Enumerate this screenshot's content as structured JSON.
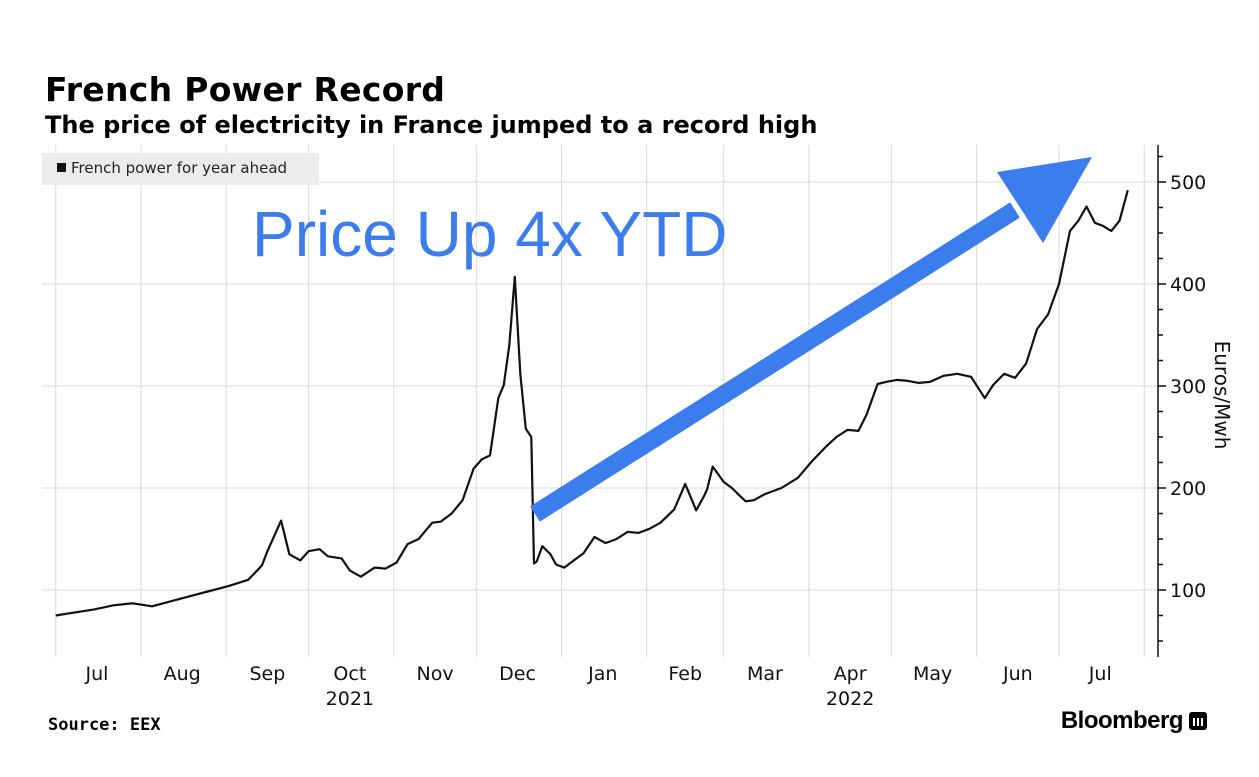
{
  "header": {
    "title": "French Power Record",
    "subtitle": "The price of electricity in France jumped to a record high"
  },
  "footer": {
    "source": "Source: EEX",
    "brand": "Bloomberg"
  },
  "annotation": {
    "text": "Price Up 4x YTD",
    "color": "#3b7ded"
  },
  "colors": {
    "line": "#111111",
    "grid": "#d9d9d9",
    "legend_bg": "#ececec",
    "arrow": "#3b7ded"
  },
  "chart_data": {
    "type": "line",
    "title": "French Power Record",
    "subtitle": "The price of electricity in France jumped to a record high",
    "ylabel": "Euros/Mwh",
    "ylim": [
      35,
      535
    ],
    "yticks": [
      100,
      200,
      300,
      400,
      500
    ],
    "y_axis_side": "right",
    "grid": true,
    "legend": {
      "position": "top-left",
      "entries": [
        "French power for year ahead"
      ]
    },
    "x_month_labels": [
      "Jul",
      "Aug",
      "Sep",
      "Oct",
      "Nov",
      "Dec",
      "Jan",
      "Feb",
      "Mar",
      "Apr",
      "May",
      "Jun",
      "Jul"
    ],
    "x_year_labels": [
      "2021",
      "2022"
    ],
    "series": [
      {
        "name": "French power for year ahead",
        "x": [
          "2021-07-01",
          "2021-07-08",
          "2021-07-15",
          "2021-07-22",
          "2021-07-29",
          "2021-08-05",
          "2021-08-12",
          "2021-08-19",
          "2021-08-26",
          "2021-09-02",
          "2021-09-09",
          "2021-09-14",
          "2021-09-16",
          "2021-09-21",
          "2021-09-24",
          "2021-09-28",
          "2021-10-01",
          "2021-10-05",
          "2021-10-08",
          "2021-10-13",
          "2021-10-16",
          "2021-10-20",
          "2021-10-25",
          "2021-10-29",
          "2021-11-02",
          "2021-11-06",
          "2021-11-10",
          "2021-11-15",
          "2021-11-18",
          "2021-11-22",
          "2021-11-26",
          "2021-11-30",
          "2021-12-03",
          "2021-12-06",
          "2021-12-09",
          "2021-12-11",
          "2021-12-13",
          "2021-12-15",
          "2021-12-17",
          "2021-12-19",
          "2021-12-21",
          "2021-12-22",
          "2021-12-23",
          "2021-12-25",
          "2021-12-28",
          "2021-12-30",
          "2022-01-02",
          "2022-01-05",
          "2022-01-09",
          "2022-01-13",
          "2022-01-17",
          "2022-01-21",
          "2022-01-25",
          "2022-01-29",
          "2022-02-02",
          "2022-02-06",
          "2022-02-11",
          "2022-02-15",
          "2022-02-19",
          "2022-02-22",
          "2022-02-23",
          "2022-02-25",
          "2022-03-01",
          "2022-03-04",
          "2022-03-07",
          "2022-03-09",
          "2022-03-12",
          "2022-03-16",
          "2022-03-22",
          "2022-03-28",
          "2022-04-02",
          "2022-04-07",
          "2022-04-11",
          "2022-04-15",
          "2022-04-19",
          "2022-04-22",
          "2022-04-26",
          "2022-04-29",
          "2022-05-03",
          "2022-05-07",
          "2022-05-11",
          "2022-05-15",
          "2022-05-20",
          "2022-05-25",
          "2022-05-30",
          "2022-06-04",
          "2022-06-07",
          "2022-06-11",
          "2022-06-15",
          "2022-06-19",
          "2022-06-23",
          "2022-06-27",
          "2022-07-01",
          "2022-07-05",
          "2022-07-08",
          "2022-07-11",
          "2022-07-14",
          "2022-07-17",
          "2022-07-20",
          "2022-07-23",
          "2022-07-26"
        ],
        "y": [
          75,
          78,
          81,
          85,
          87,
          84,
          89,
          94,
          99,
          104,
          110,
          124,
          138,
          168,
          135,
          129,
          138,
          140,
          133,
          131,
          119,
          113,
          122,
          121,
          127,
          145,
          150,
          166,
          167,
          175,
          188,
          219,
          228,
          232,
          288,
          301,
          340,
          407,
          312,
          258,
          250,
          126,
          128,
          143,
          135,
          125,
          122,
          128,
          136,
          152,
          146,
          150,
          157,
          156,
          160,
          166,
          179,
          204,
          178,
          193,
          199,
          221,
          206,
          200,
          192,
          187,
          188,
          194,
          200,
          210,
          226,
          240,
          250,
          257,
          256,
          272,
          302,
          304,
          306,
          305,
          303,
          304,
          310,
          312,
          309,
          288,
          301,
          312,
          308,
          322,
          356,
          370,
          400,
          452,
          462,
          476,
          460,
          457,
          452,
          462,
          492
        ]
      }
    ]
  }
}
